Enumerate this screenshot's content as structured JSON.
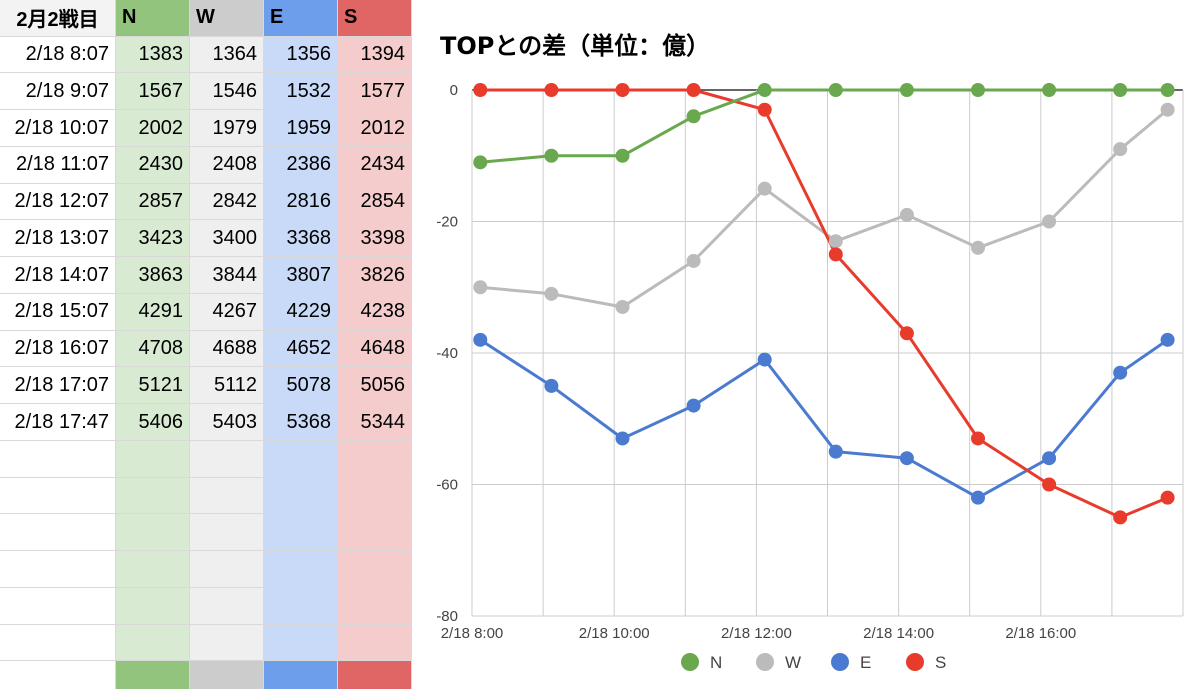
{
  "sheet": {
    "header": [
      "2月2戦目",
      "N",
      "W",
      "E",
      "S"
    ],
    "rows": [
      [
        "2/18 8:07",
        "1383",
        "1364",
        "1356",
        "1394"
      ],
      [
        "2/18 9:07",
        "1567",
        "1546",
        "1532",
        "1577"
      ],
      [
        "2/18 10:07",
        "2002",
        "1979",
        "1959",
        "2012"
      ],
      [
        "2/18 11:07",
        "2430",
        "2408",
        "2386",
        "2434"
      ],
      [
        "2/18 12:07",
        "2857",
        "2842",
        "2816",
        "2854"
      ],
      [
        "2/18 13:07",
        "3423",
        "3400",
        "3368",
        "3398"
      ],
      [
        "2/18 14:07",
        "3863",
        "3844",
        "3807",
        "3826"
      ],
      [
        "2/18 15:07",
        "4291",
        "4267",
        "4229",
        "4238"
      ],
      [
        "2/18 16:07",
        "4708",
        "4688",
        "4652",
        "4648"
      ],
      [
        "2/18 17:07",
        "5121",
        "5112",
        "5078",
        "5056"
      ],
      [
        "2/18 17:47",
        "5406",
        "5403",
        "5368",
        "5344"
      ]
    ],
    "empty_rows": 6,
    "column_colors": {
      "N": "#93c47d",
      "W": "#cccccc",
      "E": "#6d9eeb",
      "S": "#e06666"
    }
  },
  "chart_data": {
    "type": "line",
    "title": "TOPとの差（単位：億）",
    "xlabel": "",
    "ylabel": "",
    "x": [
      "2/18 8:07",
      "2/18 9:07",
      "2/18 10:07",
      "2/18 11:07",
      "2/18 12:07",
      "2/18 13:07",
      "2/18 14:07",
      "2/18 15:07",
      "2/18 16:07",
      "2/18 17:07",
      "2/18 17:47"
    ],
    "x_hours": [
      8.1167,
      9.1167,
      10.1167,
      11.1167,
      12.1167,
      13.1167,
      14.1167,
      15.1167,
      16.1167,
      17.1167,
      17.7833
    ],
    "xlim": [
      "2/18 8:00",
      "2/18 18:00"
    ],
    "x_ticks": [
      "2/18 8:00",
      "2/18 10:00",
      "2/18 12:00",
      "2/18 14:00",
      "2/18 16:00"
    ],
    "ylim": [
      -80,
      0
    ],
    "y_ticks": [
      "0",
      "-20",
      "-40",
      "-60",
      "-80"
    ],
    "grid": true,
    "legend": "bottom",
    "series": [
      {
        "name": "N",
        "color": "#6aa84f",
        "values": [
          -11,
          -10,
          -10,
          -4,
          0,
          0,
          0,
          0,
          0,
          0,
          0
        ]
      },
      {
        "name": "W",
        "color": "#bbbbbb",
        "values": [
          -30,
          -31,
          -33,
          -26,
          -15,
          -23,
          -19,
          -24,
          -20,
          -9,
          -3
        ]
      },
      {
        "name": "E",
        "color": "#4a7bd0",
        "values": [
          -38,
          -45,
          -53,
          -48,
          -41,
          -55,
          -56,
          -62,
          -56,
          -43,
          -38
        ]
      },
      {
        "name": "S",
        "color": "#e83b2c",
        "values": [
          0,
          0,
          0,
          0,
          -3,
          -25,
          -37,
          -53,
          -60,
          -65,
          -62
        ]
      }
    ]
  }
}
